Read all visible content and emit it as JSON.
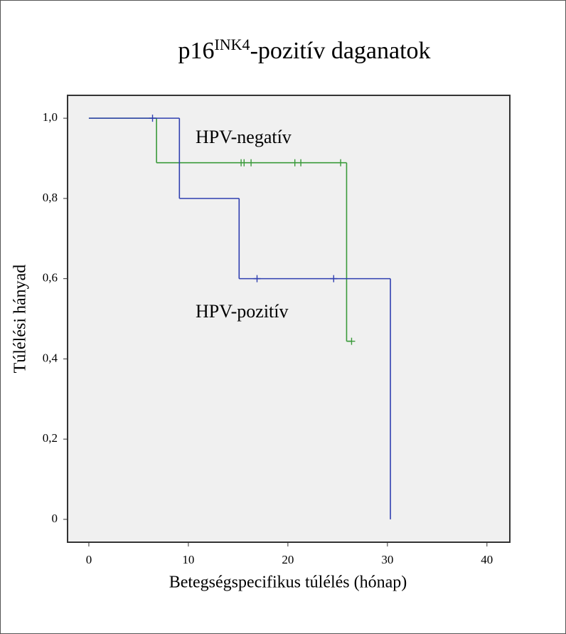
{
  "chart_data": {
    "type": "kaplan-meier",
    "title": [
      "p16",
      "INK4",
      "-pozitív daganatok"
    ],
    "x_label": "Betegségspecifikus túlélés (hónap)",
    "y_label": "Túlélési hányad",
    "xlim": [
      -2.14,
      42.3
    ],
    "ylim": [
      -0.057,
      1.057
    ],
    "xticks": [
      0,
      10,
      20,
      30,
      40
    ],
    "yticks": [
      0,
      {
        "value": 0.2,
        "label": "0,2"
      },
      {
        "value": 0.4,
        "label": "0,4"
      },
      {
        "value": 0.6,
        "label": "0,6"
      },
      {
        "value": 0.8,
        "label": "0,8"
      },
      {
        "value": 1,
        "label": "1,0"
      }
    ],
    "series": [
      {
        "name": "HPV-negatív",
        "color": "#3a9a3a",
        "x": [
          0,
          6.8,
          25.9
        ],
        "values": [
          1,
          0.889,
          0.444
        ],
        "censored_x": [
          15.3,
          15.6,
          16.3,
          20.7,
          21.3,
          25.3,
          26.4
        ],
        "censored_values": [
          0.889,
          0.889,
          0.889,
          0.889,
          0.889,
          0.889,
          0.444
        ]
      },
      {
        "name": "HPV-pozitív",
        "color": "#2f3fb0",
        "x": [
          0,
          9.1,
          15.1,
          30.3
        ],
        "values": [
          1,
          0.8,
          0.6,
          0
        ],
        "censored_x": [
          6.4,
          16.9,
          24.6
        ],
        "censored_values": [
          1,
          0.6,
          0.6
        ]
      }
    ]
  }
}
